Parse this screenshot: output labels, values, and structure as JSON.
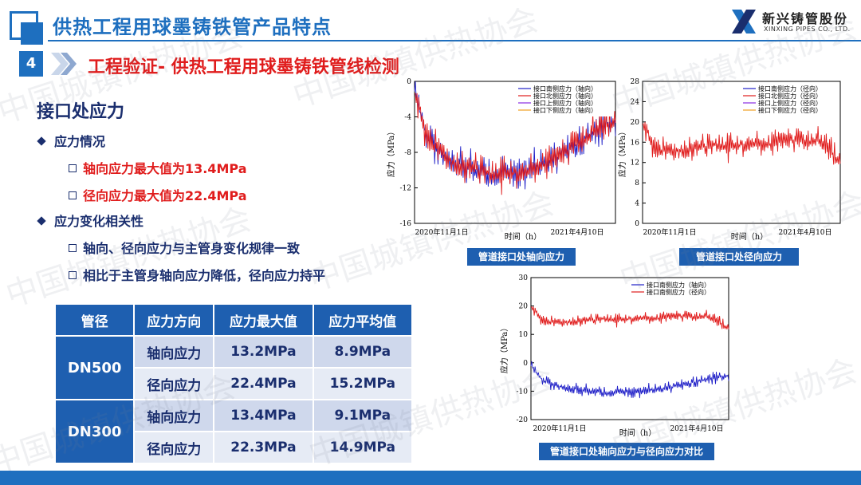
{
  "header": {
    "title": "供热工程用球墨铸铁管产品特点",
    "logo_cn": "新兴铸管股份",
    "logo_en": "XINXING PIPES CO., LTD."
  },
  "section": {
    "number": "4",
    "title": "工程验证- 供热工程用球墨铸铁管线检测"
  },
  "left": {
    "heading": "接口处应力",
    "bullet1": "应力情况",
    "sub1a": "轴向应力最大值为13.4MPa",
    "sub1b": "径向应力最大值为22.4MPa",
    "bullet2": "应力变化相关性",
    "sub2a": "轴向、径向应力与主管身变化规律一致",
    "sub2b": "相比于主管身轴向应力降低，径向应力持平"
  },
  "table": {
    "headers": [
      "管径",
      "应力方向",
      "应力最大值",
      "应力平均值"
    ],
    "groups": [
      {
        "size": "DN500",
        "rows": [
          [
            "轴向应力",
            "13.2MPa",
            "8.9MPa"
          ],
          [
            "径向应力",
            "22.4MPa",
            "15.2MPa"
          ]
        ]
      },
      {
        "size": "DN300",
        "rows": [
          [
            "轴向应力",
            "13.4MPa",
            "9.1MPa"
          ],
          [
            "径向应力",
            "22.3MPa",
            "14.9MPa"
          ]
        ]
      }
    ]
  },
  "watermark": "中国城镇供热协会",
  "colors": {
    "primary": "#1e6fbf",
    "accent_red": "#e01c1c",
    "navy": "#1a2e6e",
    "table_header": "#1e5fb0"
  },
  "chart_data": [
    {
      "type": "line",
      "caption": "管道接口处轴向应力",
      "ylabel": "应力（MPa）",
      "xlabel": "时间（h）",
      "x_ticks": [
        "2020年11月1日",
        "2021年4月10日"
      ],
      "y_ticks": [
        0,
        -4,
        -8,
        -12,
        -16
      ],
      "ylim": [
        -16,
        0
      ],
      "legend": "top-right",
      "series": [
        {
          "name": "接口南侧应力（轴向）",
          "color": "#1f1fc8",
          "values": [
            -1,
            -6.5,
            -8,
            -9,
            -9.5,
            -10,
            -10.5,
            -10.5,
            -10.3,
            -10,
            -9.5,
            -9,
            -8,
            -7,
            -6,
            -5,
            -4.5
          ]
        },
        {
          "name": "接口北侧应力（轴向）",
          "color": "#e01c1c",
          "values": [
            -1,
            -6.5,
            -8,
            -9,
            -9.5,
            -10,
            -10.5,
            -10.5,
            -10.3,
            -10,
            -9.5,
            -9,
            -8,
            -7,
            -6,
            -5,
            -4.5
          ]
        },
        {
          "name": "接口上侧应力（轴向）",
          "color": "#8a2be2",
          "values": []
        },
        {
          "name": "接口下侧应力（轴向）",
          "color": "#f0a020",
          "values": []
        }
      ]
    },
    {
      "type": "line",
      "caption": "管道接口处径向应力",
      "ylabel": "应力（MPa）",
      "xlabel": "时间（h）",
      "x_ticks": [
        "2020年11月1日",
        "2021年4月10日"
      ],
      "y_ticks": [
        0,
        4,
        8,
        12,
        16,
        20,
        24,
        28
      ],
      "ylim": [
        0,
        28
      ],
      "legend": "top-right",
      "series": [
        {
          "name": "接口南侧应力（径向）",
          "color": "#1f1fc8",
          "values": []
        },
        {
          "name": "接口北侧应力（径向）",
          "color": "#e01c1c",
          "values": [
            20,
            14.5,
            14,
            14.5,
            15,
            15,
            15.5,
            15,
            15.5,
            16,
            15.5,
            16,
            16.5,
            16,
            16.5,
            15,
            12
          ]
        },
        {
          "name": "接口上侧应力（径向）",
          "color": "#8a2be2",
          "values": []
        },
        {
          "name": "接口下侧应力（径向）",
          "color": "#f0a020",
          "values": []
        }
      ]
    },
    {
      "type": "line",
      "caption": "管道接口处轴向应力与径向应力对比",
      "ylabel": "应力（MPa）",
      "xlabel": "时间（h）",
      "x_ticks": [
        "2020年11月1日",
        "2021年4月10日"
      ],
      "y_ticks": [
        30,
        20,
        10,
        0,
        -10,
        -20
      ],
      "ylim": [
        -20,
        30
      ],
      "legend": "top-right",
      "series": [
        {
          "name": "接口南侧应力（轴向）",
          "color": "#1f1fc8",
          "values": [
            -1,
            -6.5,
            -8,
            -9,
            -9.5,
            -10,
            -10.5,
            -10.5,
            -10.3,
            -10,
            -9.5,
            -9,
            -8,
            -7,
            -6,
            -5,
            -4.5
          ]
        },
        {
          "name": "接口南侧应力（径向）",
          "color": "#e01c1c",
          "values": [
            20,
            14.5,
            14,
            14.5,
            15,
            15,
            15.5,
            15,
            15.5,
            16,
            15.5,
            16,
            16.5,
            16,
            16.5,
            15,
            12
          ]
        }
      ]
    }
  ]
}
